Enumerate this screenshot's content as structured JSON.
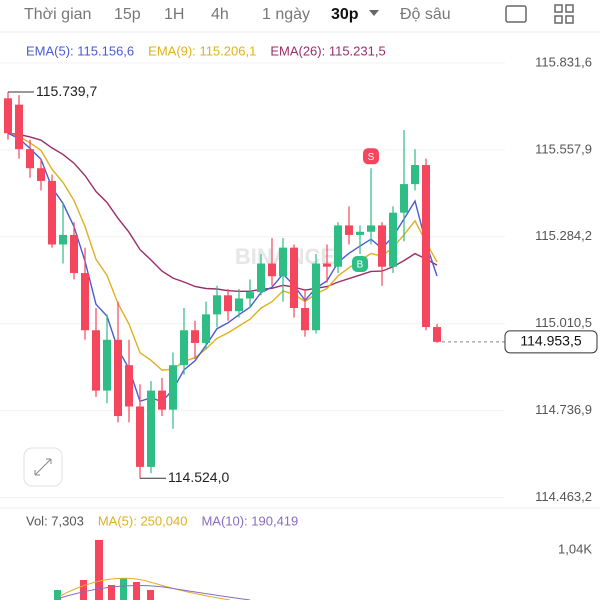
{
  "tabs": [
    "Thời gian",
    "15p",
    "1H",
    "4h",
    "1 ngày",
    "30p",
    "Độ sâu"
  ],
  "active_tab": 5,
  "indicators": [
    {
      "label": "EMA(5): 115.156,6",
      "color": "#4a5bd0"
    },
    {
      "label": "EMA(9): 115.206,1",
      "color": "#e0b020"
    },
    {
      "label": "EMA(26): 115.231,5",
      "color": "#9b2d6a"
    }
  ],
  "watermark": "BINANCE",
  "volume_legend": [
    {
      "label": "Vol: 7,303",
      "color": "#555555"
    },
    {
      "label": "MA(5): 250,040",
      "color": "#e0b020"
    },
    {
      "label": "MA(10): 190,419",
      "color": "#8a6cc0"
    }
  ],
  "volume_axis": "1,04K",
  "chart_data": {
    "type": "candlestick",
    "open": [
      115720,
      115700,
      115560,
      115500,
      115460,
      115260,
      115290,
      115170,
      114990,
      114800,
      114960,
      114880,
      114750,
      114560,
      114800,
      114740,
      114880,
      114990,
      114950,
      115040,
      115100,
      115050,
      115090,
      115110,
      115200,
      115160,
      115250,
      115060,
      114990,
      115200,
      115190,
      115320,
      115290,
      115300,
      115320,
      115190,
      115360,
      115450,
      115510,
      115000
    ],
    "high": [
      115739.7,
      115730,
      115590,
      115530,
      115480,
      115390,
      115330,
      115250,
      115060,
      115040,
      115080,
      114960,
      114820,
      114830,
      114840,
      114920,
      115060,
      115020,
      115080,
      115130,
      115120,
      115120,
      115150,
      115230,
      115280,
      115280,
      115260,
      115120,
      115230,
      115260,
      115330,
      115380,
      115320,
      115500,
      115330,
      115380,
      115620,
      115560,
      115530,
      115010
    ],
    "low": [
      115590,
      115530,
      115470,
      115430,
      115250,
      115200,
      115150,
      114960,
      114780,
      114760,
      114700,
      114700,
      114524,
      114540,
      114720,
      114680,
      114850,
      114900,
      114930,
      115000,
      115020,
      115030,
      115060,
      115100,
      115130,
      115080,
      115030,
      114970,
      114980,
      115140,
      115170,
      115260,
      115230,
      115260,
      115130,
      115170,
      115270,
      115430,
      114990,
      114950
    ],
    "close": [
      115610,
      115560,
      115500,
      115460,
      115260,
      115290,
      115170,
      114990,
      114800,
      114960,
      114720,
      114750,
      114560,
      114800,
      114740,
      114880,
      114990,
      114950,
      115040,
      115100,
      115050,
      115090,
      115110,
      115200,
      115160,
      115250,
      115060,
      114990,
      115200,
      115190,
      115320,
      115290,
      115300,
      115320,
      115190,
      115360,
      115450,
      115510,
      115000,
      114953.5
    ],
    "colors": {
      "up": "#2ebd85",
      "down": "#f6465d"
    },
    "ylim": [
      114440,
      115935
    ],
    "yticks": [
      {
        "value": 115831.6,
        "label": "115.831,6"
      },
      {
        "value": 115557.9,
        "label": "115.557,9"
      },
      {
        "value": 115284.2,
        "label": "115.284,2"
      },
      {
        "value": 115010.5,
        "label": "115.010,5"
      },
      {
        "value": 114736.9,
        "label": "114.736,9"
      },
      {
        "value": 114463.2,
        "label": "114.463,2"
      }
    ],
    "grid": true,
    "annotations": [
      {
        "label": "115.739,7",
        "value": 115739.7,
        "index": 0
      },
      {
        "label": "114.524,0",
        "value": 114524,
        "index": 12
      }
    ],
    "last_price": {
      "value": 114953.5,
      "label": "114.953,5"
    },
    "markers": [
      {
        "label": "S",
        "index": 33
      },
      {
        "label": "B",
        "index": 32
      }
    ]
  }
}
